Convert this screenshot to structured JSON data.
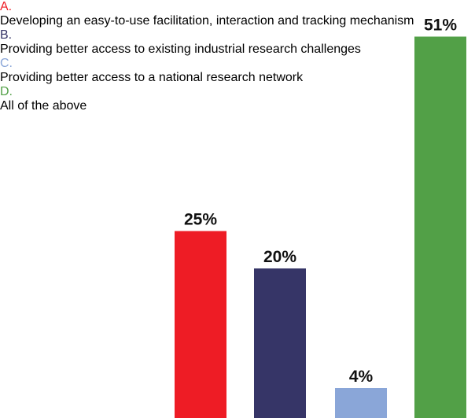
{
  "chart_data": {
    "type": "bar",
    "categories": [
      "A.",
      "B.",
      "C.",
      "D."
    ],
    "descriptions": [
      "Developing an easy-to-use facilitation, interaction and tracking mechanism",
      "Providing better access to existing industrial research challenges",
      "Providing better access to a national research network",
      "All of the above"
    ],
    "values": [
      25,
      20,
      4,
      51
    ],
    "value_labels": [
      "25%",
      "20%",
      "4%",
      "51%"
    ],
    "colors": [
      "#ee1c25",
      "#363567",
      "#8aa6d8",
      "#52a047"
    ]
  }
}
